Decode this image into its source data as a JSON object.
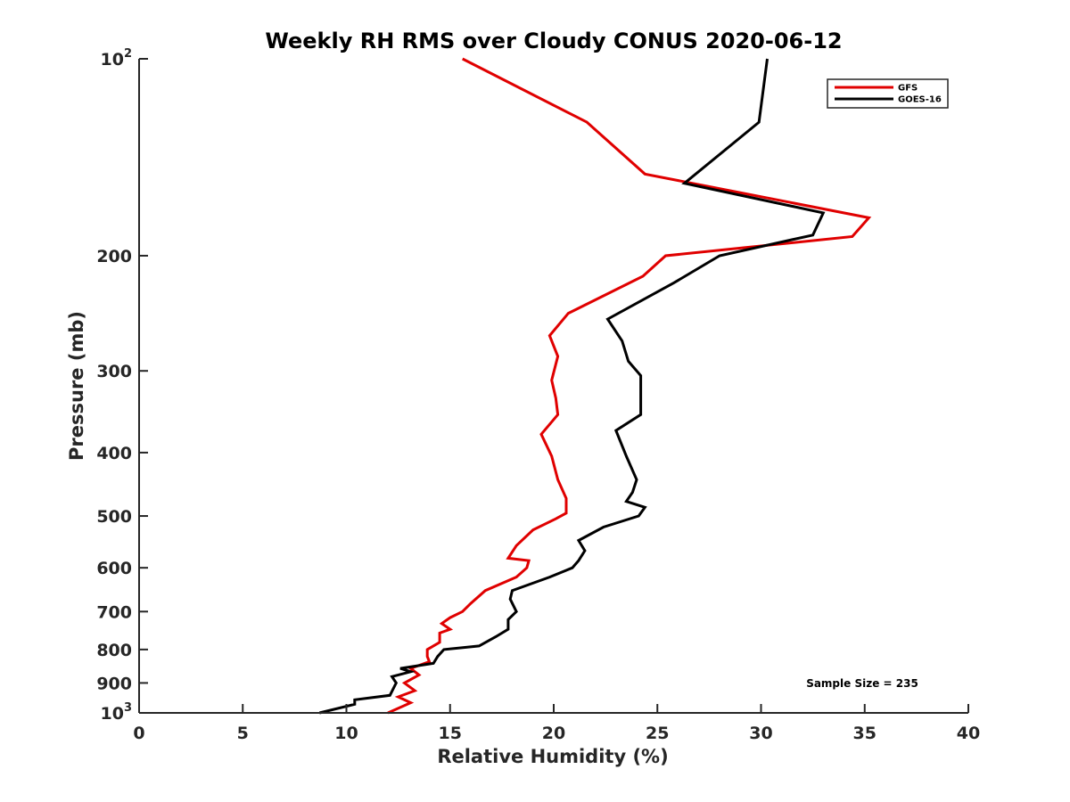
{
  "chart_data": {
    "type": "line",
    "title": "Weekly RH RMS over Cloudy CONUS 2020-06-12",
    "xlabel": "Relative Humidity (%)",
    "ylabel": "Pressure (mb)",
    "xlim": [
      0,
      40
    ],
    "ylim": [
      100,
      1000
    ],
    "y_scale": "log",
    "y_reversed": true,
    "x_ticks": [
      0,
      5,
      10,
      15,
      20,
      25,
      30,
      35,
      40
    ],
    "y_ticks": [
      {
        "value": 100,
        "label": "10",
        "sup": "2"
      },
      {
        "value": 200,
        "label": "200",
        "sup": ""
      },
      {
        "value": 300,
        "label": "300",
        "sup": ""
      },
      {
        "value": 400,
        "label": "400",
        "sup": ""
      },
      {
        "value": 500,
        "label": "500",
        "sup": ""
      },
      {
        "value": 600,
        "label": "600",
        "sup": ""
      },
      {
        "value": 700,
        "label": "700",
        "sup": ""
      },
      {
        "value": 800,
        "label": "800",
        "sup": ""
      },
      {
        "value": 900,
        "label": "900",
        "sup": ""
      },
      {
        "value": 1000,
        "label": "10",
        "sup": "3"
      }
    ],
    "grid": false,
    "legend_position": "top-right",
    "annotation": "Sample Size = 235",
    "series": [
      {
        "name": "GFS",
        "color": "#e00000",
        "points": [
          [
            15.6,
            100
          ],
          [
            21.6,
            125
          ],
          [
            24.4,
            150
          ],
          [
            35.2,
            175
          ],
          [
            34.4,
            187
          ],
          [
            25.4,
            200
          ],
          [
            24.3,
            215
          ],
          [
            20.7,
            245
          ],
          [
            19.8,
            265
          ],
          [
            20.2,
            285
          ],
          [
            19.9,
            310
          ],
          [
            20.1,
            330
          ],
          [
            20.2,
            350
          ],
          [
            19.4,
            375
          ],
          [
            19.9,
            405
          ],
          [
            20.2,
            440
          ],
          [
            20.6,
            470
          ],
          [
            20.6,
            495
          ],
          [
            20.1,
            505
          ],
          [
            19.0,
            525
          ],
          [
            18.2,
            555
          ],
          [
            17.8,
            580
          ],
          [
            18.8,
            585
          ],
          [
            18.7,
            600
          ],
          [
            18.2,
            620
          ],
          [
            16.7,
            650
          ],
          [
            16.0,
            680
          ],
          [
            15.6,
            700
          ],
          [
            15.0,
            715
          ],
          [
            14.6,
            730
          ],
          [
            15.0,
            745
          ],
          [
            14.5,
            755
          ],
          [
            14.5,
            780
          ],
          [
            13.9,
            800
          ],
          [
            13.9,
            820
          ],
          [
            14.0,
            835
          ],
          [
            13.1,
            855
          ],
          [
            13.5,
            875
          ],
          [
            12.8,
            900
          ],
          [
            13.3,
            925
          ],
          [
            12.5,
            945
          ],
          [
            13.1,
            965
          ],
          [
            12.0,
            1000
          ]
        ]
      },
      {
        "name": "GOES-16",
        "color": "#000000",
        "points": [
          [
            30.3,
            100
          ],
          [
            29.9,
            125
          ],
          [
            26.3,
            155
          ],
          [
            33.0,
            172
          ],
          [
            32.5,
            186
          ],
          [
            28.0,
            200
          ],
          [
            25.8,
            220
          ],
          [
            22.6,
            250
          ],
          [
            23.3,
            270
          ],
          [
            23.6,
            290
          ],
          [
            24.2,
            305
          ],
          [
            24.2,
            325
          ],
          [
            24.2,
            350
          ],
          [
            23.0,
            370
          ],
          [
            23.5,
            405
          ],
          [
            24.0,
            440
          ],
          [
            23.8,
            460
          ],
          [
            23.5,
            475
          ],
          [
            24.4,
            485
          ],
          [
            24.1,
            500
          ],
          [
            22.4,
            520
          ],
          [
            21.2,
            545
          ],
          [
            21.5,
            565
          ],
          [
            21.2,
            585
          ],
          [
            20.9,
            600
          ],
          [
            19.8,
            620
          ],
          [
            18.0,
            650
          ],
          [
            17.9,
            670
          ],
          [
            18.2,
            700
          ],
          [
            17.8,
            720
          ],
          [
            17.8,
            745
          ],
          [
            17.2,
            765
          ],
          [
            16.4,
            790
          ],
          [
            14.7,
            800
          ],
          [
            14.4,
            820
          ],
          [
            14.2,
            840
          ],
          [
            12.6,
            855
          ],
          [
            13.1,
            865
          ],
          [
            12.2,
            880
          ],
          [
            12.4,
            900
          ],
          [
            12.1,
            940
          ],
          [
            10.4,
            955
          ],
          [
            10.4,
            970
          ],
          [
            8.7,
            1000
          ]
        ]
      }
    ]
  }
}
